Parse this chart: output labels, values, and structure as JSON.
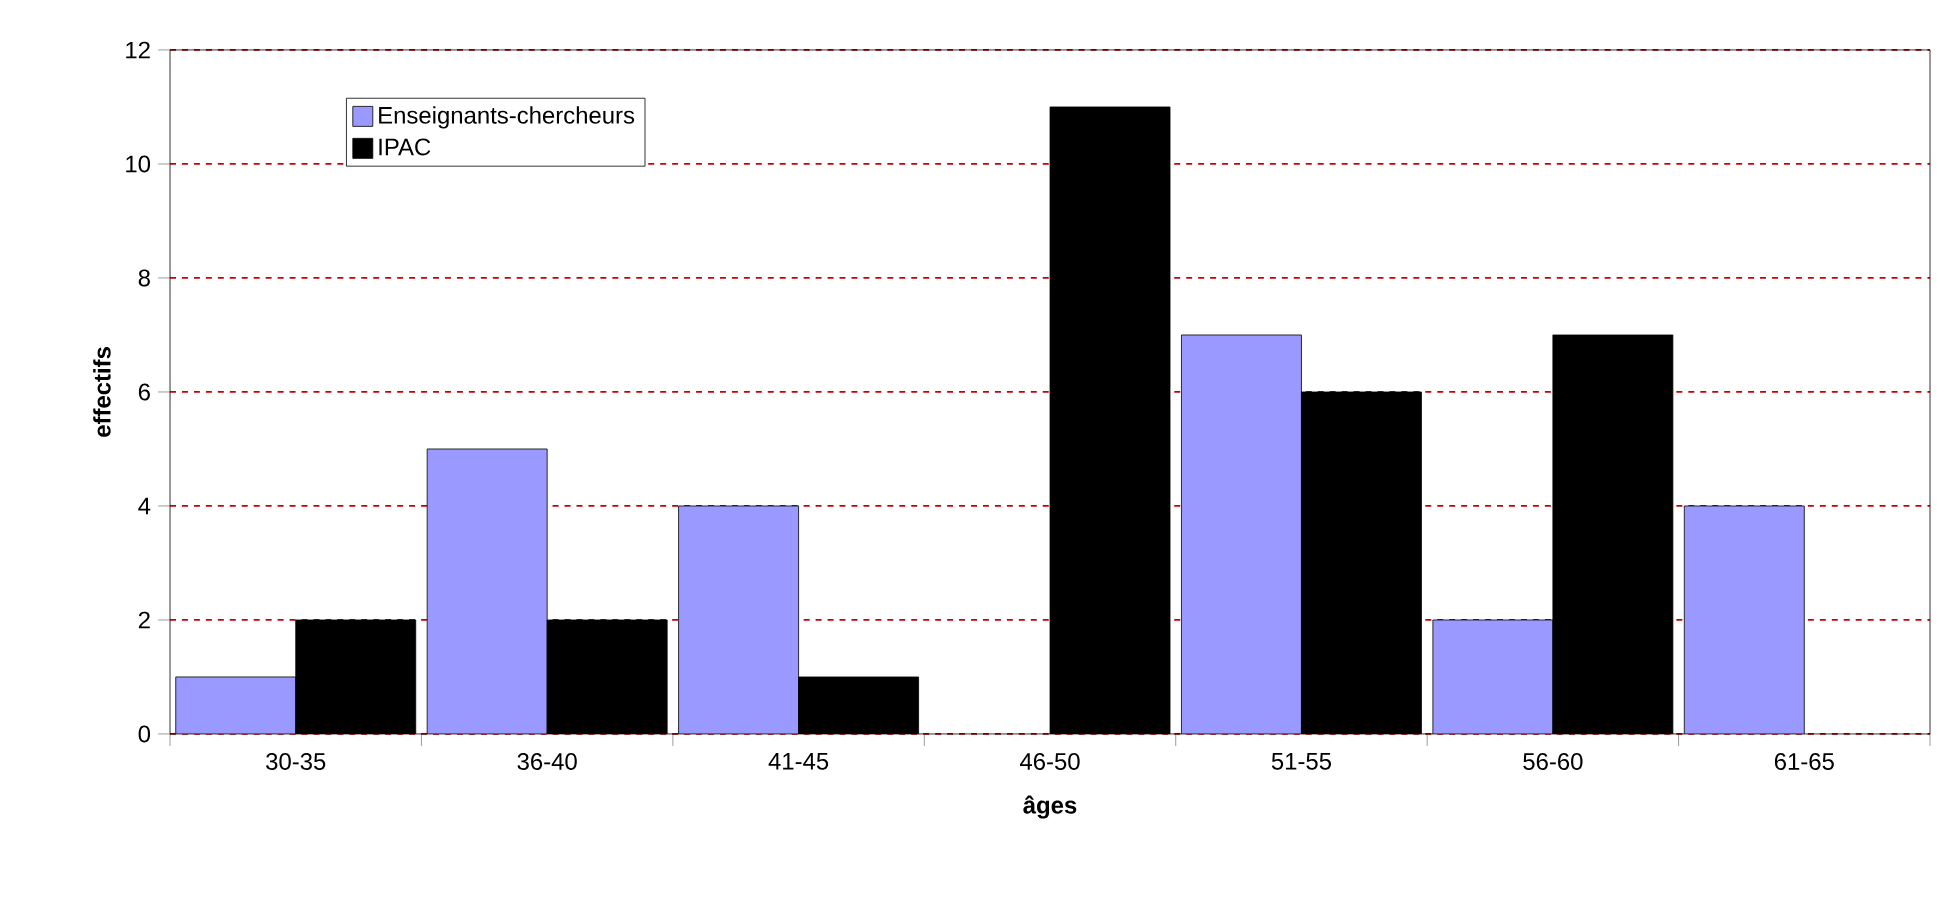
{
  "chart_data": {
    "type": "bar",
    "xlabel": "âges",
    "ylabel": "effectifs",
    "categories": [
      "30-35",
      "36-40",
      "41-45",
      "46-50",
      "51-55",
      "56-60",
      "61-65"
    ],
    "series": [
      {
        "name": "Enseignants-chercheurs",
        "color": "#9999ff",
        "values": [
          1,
          5,
          4,
          null,
          7,
          2,
          4
        ]
      },
      {
        "name": "IPAC",
        "color": "#000000",
        "values": [
          2,
          2,
          1,
          11,
          6,
          7,
          null
        ]
      }
    ],
    "ylim": [
      0,
      12
    ],
    "yticks": [
      0,
      2,
      4,
      6,
      8,
      10,
      12
    ],
    "grid": "y",
    "legend": "top left"
  }
}
